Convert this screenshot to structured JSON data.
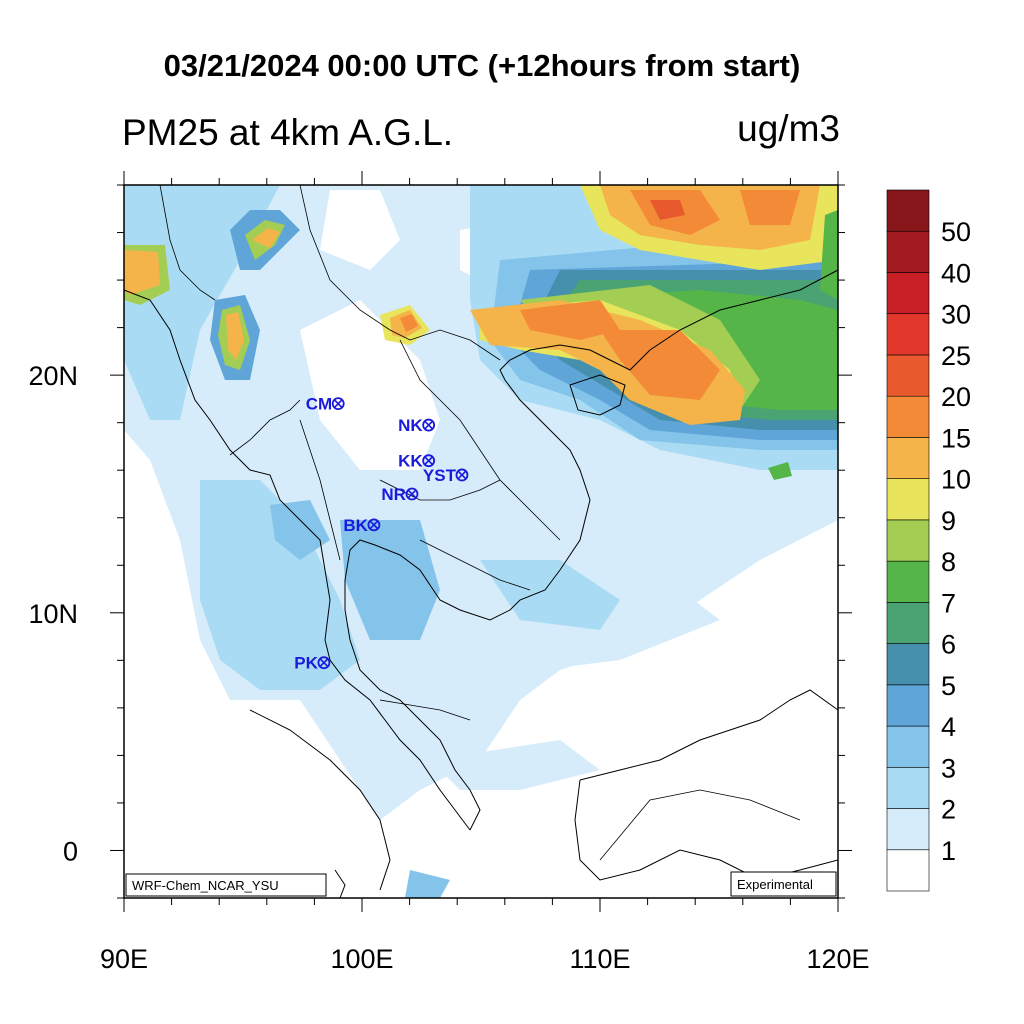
{
  "title": "03/21/2024 00:00 UTC (+12hours from start)",
  "subtitle": "PM25 at 4km A.G.L.",
  "units": "ug/m3",
  "map": {
    "lon_range": [
      90,
      120
    ],
    "lat_range": [
      -2,
      28
    ],
    "lon_ticks": [
      {
        "value": 90,
        "label": "90E"
      },
      {
        "value": 100,
        "label": "100E"
      },
      {
        "value": 110,
        "label": "110E"
      },
      {
        "value": 120,
        "label": "120E"
      }
    ],
    "lat_ticks": [
      {
        "value": 0,
        "label": "0"
      },
      {
        "value": 10,
        "label": "10N"
      },
      {
        "value": 20,
        "label": "20N"
      }
    ],
    "model_label": "WRF-Chem_NCAR_YSU",
    "status_label": "Experimental"
  },
  "stations": [
    {
      "code": "CM",
      "lon": 99.0,
      "lat": 18.8
    },
    {
      "code": "NK",
      "lon": 102.8,
      "lat": 17.9
    },
    {
      "code": "KK",
      "lon": 102.8,
      "lat": 16.4
    },
    {
      "code": "YST",
      "lon": 104.2,
      "lat": 15.8
    },
    {
      "code": "NR",
      "lon": 102.1,
      "lat": 15.0
    },
    {
      "code": "BK",
      "lon": 100.5,
      "lat": 13.7
    },
    {
      "code": "PK",
      "lon": 98.4,
      "lat": 7.9
    }
  ],
  "colorbar": {
    "levels": [
      1,
      2,
      3,
      4,
      5,
      6,
      7,
      8,
      9,
      10,
      15,
      20,
      25,
      30,
      40,
      50
    ],
    "colors": [
      "#ffffff",
      "#d6ecfa",
      "#a9dcf4",
      "#84c4ea",
      "#5fa5d8",
      "#4790ad",
      "#4aa373",
      "#55b548",
      "#a4cd54",
      "#e8e45c",
      "#f4b44a",
      "#f28a37",
      "#e85a2d",
      "#e1382b",
      "#c81f27",
      "#a11a20",
      "#86161a"
    ]
  }
}
